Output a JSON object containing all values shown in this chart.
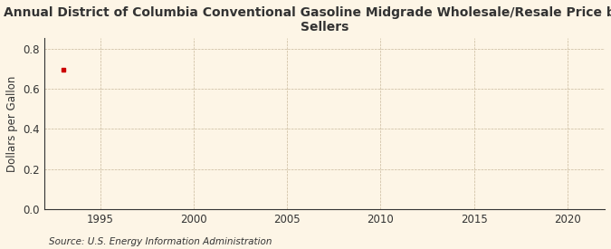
{
  "title": "Annual District of Columbia Conventional Gasoline Midgrade Wholesale/Resale Price by All\nSellers",
  "ylabel": "Dollars per Gallon",
  "source": "Source: U.S. Energy Information Administration",
  "background_color": "#f5e6c8",
  "plot_bg_color": "#fdf5e6",
  "data_x": [
    1993
  ],
  "data_y": [
    0.693
  ],
  "marker_color": "#cc0000",
  "xlim": [
    1992,
    2022
  ],
  "ylim": [
    0.0,
    0.85
  ],
  "xticks": [
    1995,
    2000,
    2005,
    2010,
    2015,
    2020
  ],
  "yticks": [
    0.0,
    0.2,
    0.4,
    0.6,
    0.8
  ],
  "grid_color": "#c8b89a",
  "axis_color": "#333333",
  "title_fontsize": 10,
  "label_fontsize": 8.5,
  "tick_fontsize": 8.5,
  "source_fontsize": 7.5
}
